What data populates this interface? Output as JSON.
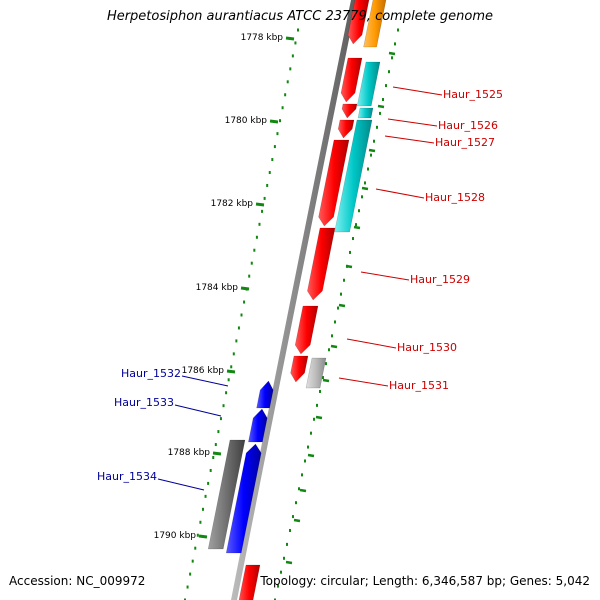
{
  "title": "Herpetosiphon aurantiacus ATCC 23779, complete genome",
  "footer": {
    "accession_label": "Accession: NC_009972",
    "topology_label": "Topology: circular; Length: 6,346,587 bp; Genes: 5,042"
  },
  "colors": {
    "backbone": "#8c8c8c",
    "red_gene": "#ff0000",
    "cyan_gene": "#00c8c8",
    "orange_gene": "#ff9900",
    "blue_gene": "#0000ff",
    "gray_gene": "#707070",
    "light_gray_gene": "#bbbbbb",
    "tick_green": "#118811",
    "label_red": "#cc0000",
    "label_blue": "#000099"
  },
  "tick_labels": [
    "1778 kbp",
    "1780 kbp",
    "1782 kbp",
    "1784 kbp",
    "1786 kbp",
    "1788 kbp",
    "1790 kbp"
  ],
  "genes_right": [
    "Haur_1525",
    "Haur_1526",
    "Haur_1527",
    "Haur_1528",
    "Haur_1529",
    "Haur_1530",
    "Haur_1531"
  ],
  "genes_left": [
    "Haur_1532",
    "Haur_1533",
    "Haur_1534"
  ]
}
